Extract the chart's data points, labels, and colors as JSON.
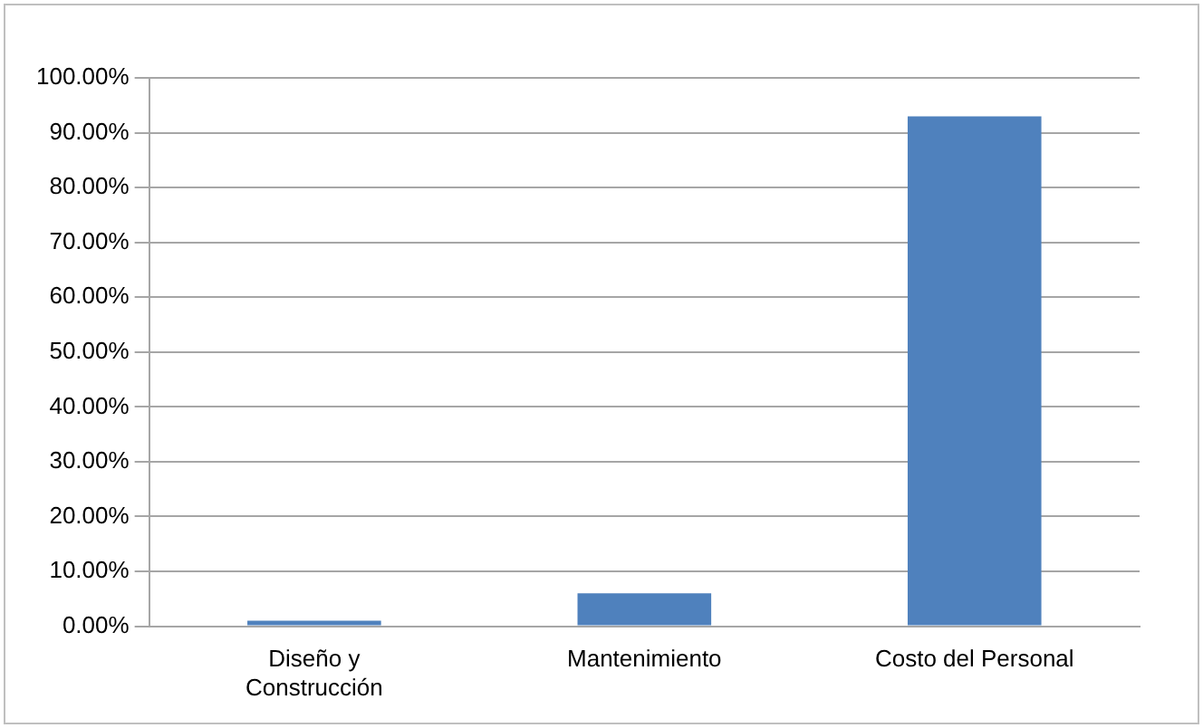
{
  "chart_data": {
    "type": "bar",
    "categories": [
      "Diseño y Construcción",
      "Mantenimiento",
      "Costo del Personal"
    ],
    "values": [
      1,
      6,
      93
    ],
    "color": "#4f81bd",
    "ylim": [
      0,
      100
    ],
    "yticks": [
      {
        "value": 0,
        "label": "0.00%"
      },
      {
        "value": 10,
        "label": "10.00%"
      },
      {
        "value": 20,
        "label": "20.00%"
      },
      {
        "value": 30,
        "label": "30.00%"
      },
      {
        "value": 40,
        "label": "40.00%"
      },
      {
        "value": 50,
        "label": "50.00%"
      },
      {
        "value": 60,
        "label": "60.00%"
      },
      {
        "value": 70,
        "label": "70.00%"
      },
      {
        "value": 80,
        "label": "80.00%"
      },
      {
        "value": 90,
        "label": "90.00%"
      },
      {
        "value": 100,
        "label": "100.00%"
      }
    ],
    "grid": "y",
    "legend": false
  }
}
